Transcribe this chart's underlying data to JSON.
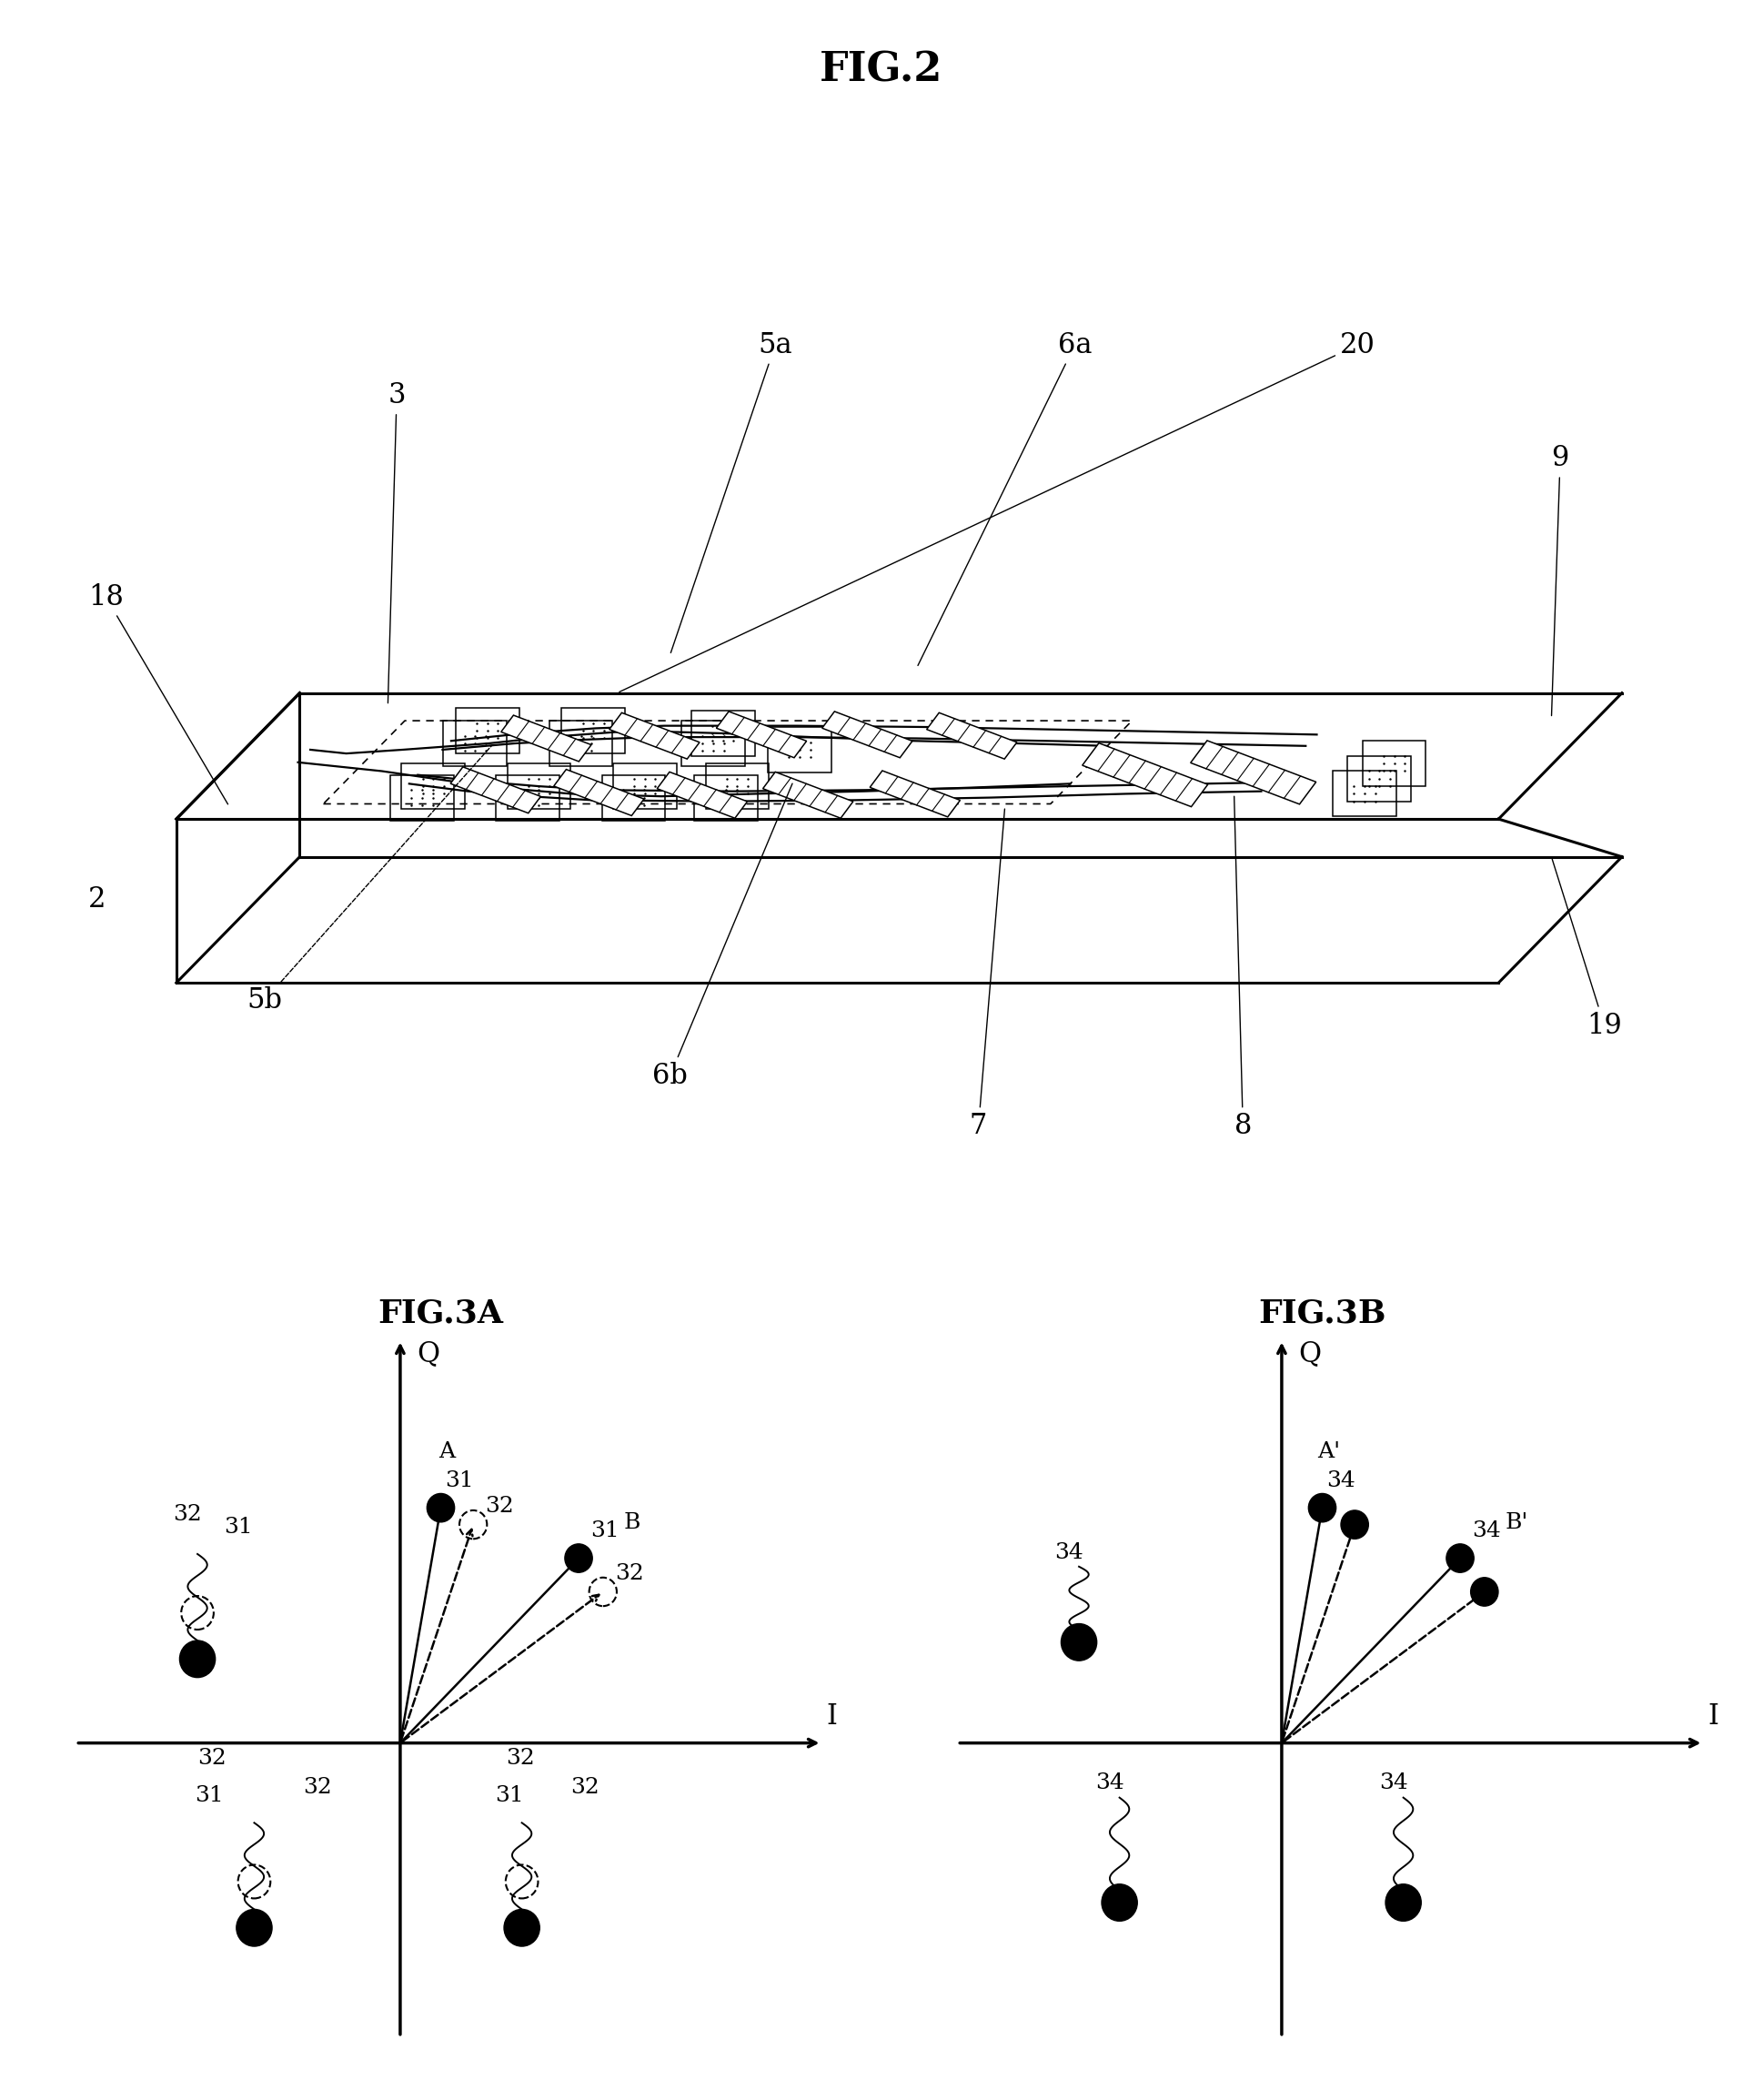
{
  "fig2_title": "FIG.2",
  "fig3a_title": "FIG.3A",
  "fig3b_title": "FIG.3B",
  "bg_color": "#ffffff",
  "title_fontsize": 32,
  "subtitle_fontsize": 26,
  "annotation_fontsize": 22,
  "label_fontsize": 22
}
